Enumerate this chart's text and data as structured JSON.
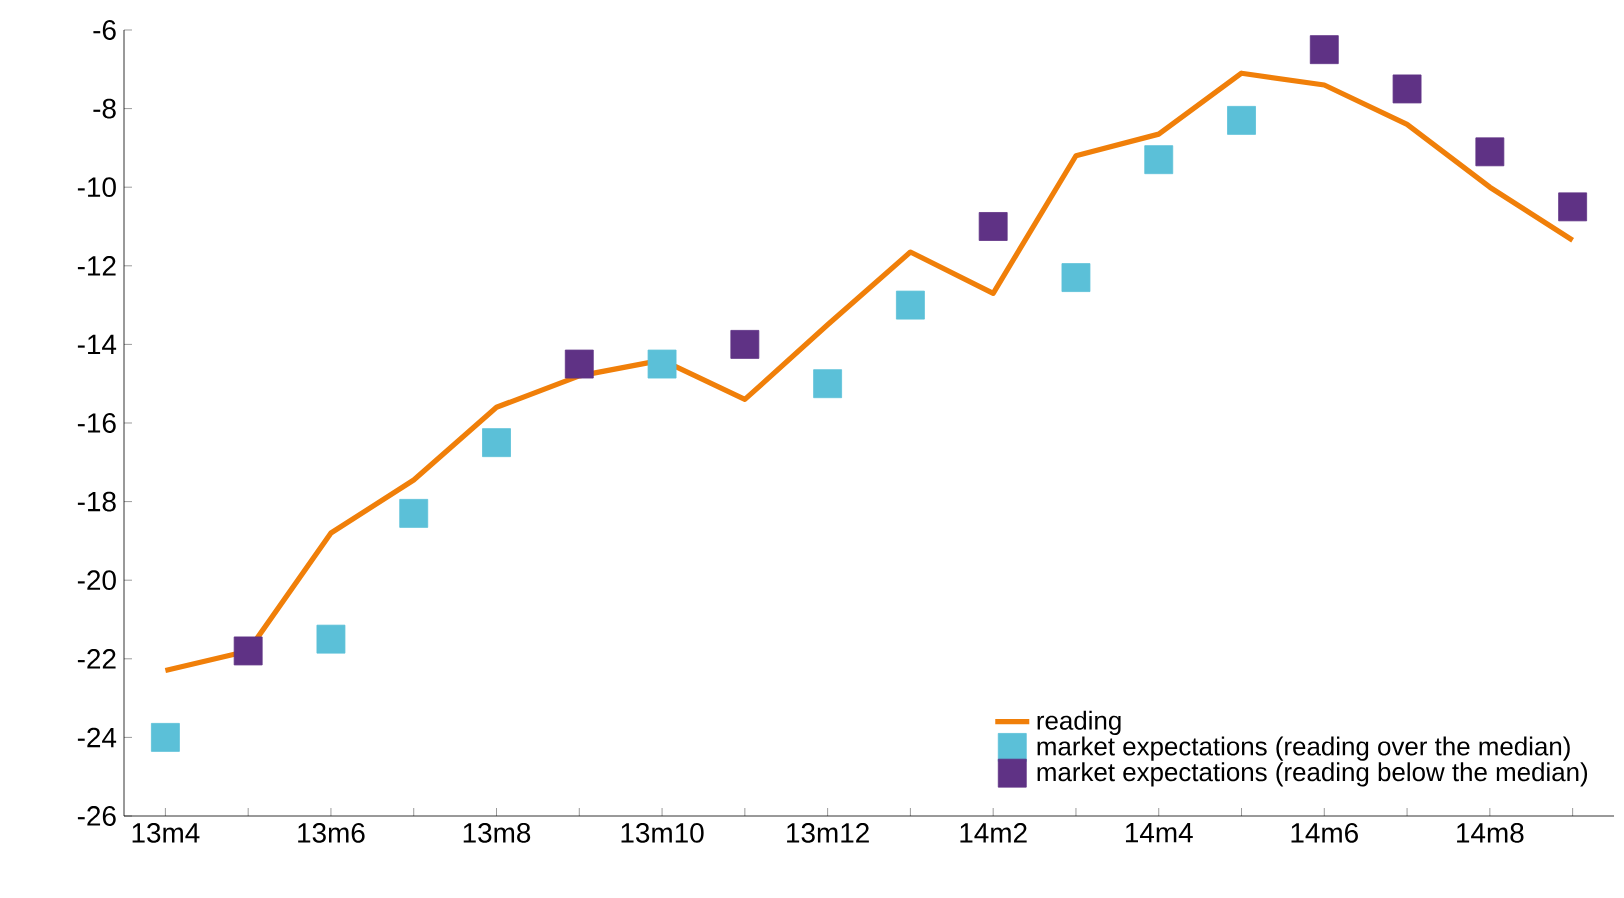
{
  "chart_data": {
    "type": "line",
    "categories": [
      "13m4",
      null,
      "13m6",
      null,
      "13m8",
      null,
      "13m10",
      null,
      "13m12",
      null,
      "14m2",
      null,
      "14m4",
      null,
      "14m6",
      null,
      "14m8",
      null
    ],
    "series": [
      {
        "name": "reading",
        "color": "#f07f09",
        "marker": "none",
        "values": [
          -22.3,
          -21.8,
          -18.8,
          -17.45,
          -15.6,
          -14.8,
          -14.4,
          -15.4,
          -13.5,
          -11.65,
          -12.7,
          -9.2,
          -8.65,
          -7.1,
          -7.4,
          -8.4,
          -10.0,
          -11.35
        ]
      },
      {
        "name": "market expectations (reading over the median)",
        "type": "scatter",
        "color": "#5bc0d8",
        "marker": "square",
        "values": [
          -24.0,
          null,
          -21.5,
          -18.3,
          -16.5,
          null,
          -14.5,
          null,
          -15.0,
          -13.0,
          null,
          -12.3,
          -9.3,
          -8.3,
          null,
          null,
          null,
          null
        ]
      },
      {
        "name": "market expectations (reading below the median)",
        "type": "scatter",
        "color": "#5f3285",
        "marker": "square",
        "values": [
          null,
          -21.8,
          null,
          null,
          null,
          -14.5,
          null,
          -14.0,
          null,
          null,
          -11.0,
          null,
          null,
          null,
          -6.5,
          -7.5,
          -9.1,
          -10.5
        ]
      }
    ],
    "ylim": [
      -26,
      -6
    ],
    "yticks": [
      -26,
      -24,
      -22,
      -20,
      -18,
      -16,
      -14,
      -12,
      -10,
      -8,
      -6
    ],
    "grid": false,
    "legend": "bottom right"
  }
}
